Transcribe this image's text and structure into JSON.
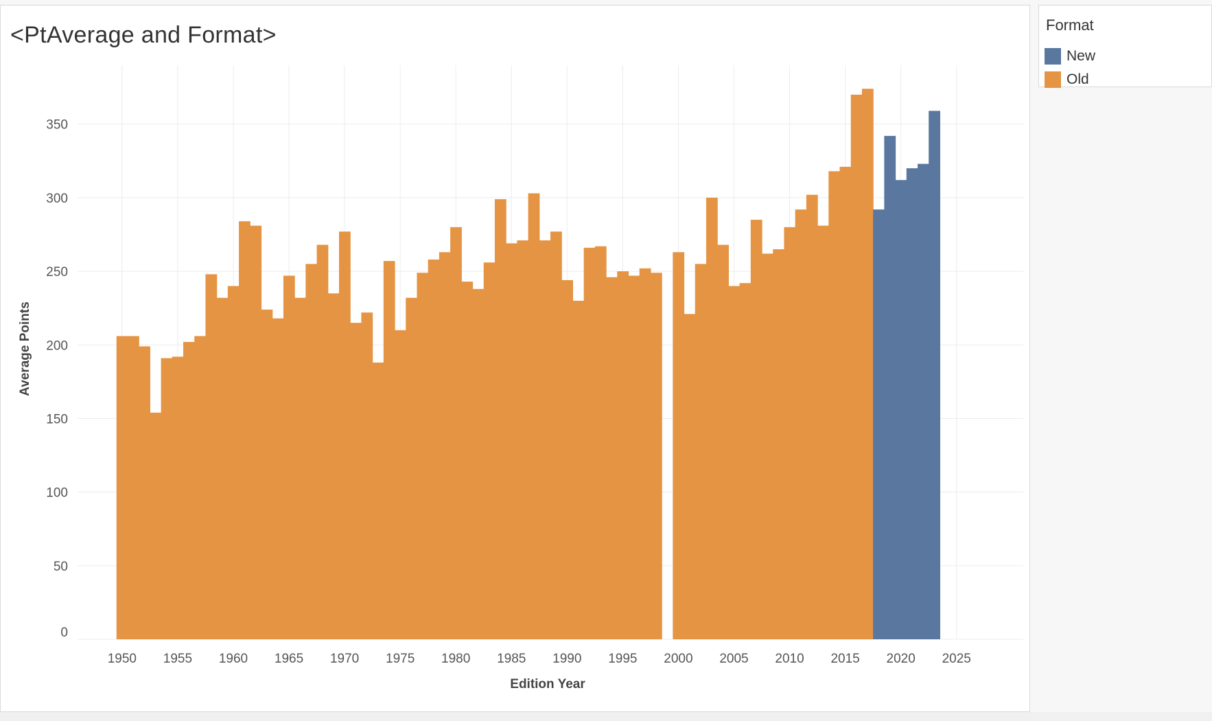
{
  "chart_data": {
    "type": "bar",
    "title": "<PtAverage and Format>",
    "xlabel": "Edition Year",
    "ylabel": "Average Points",
    "xlim": [
      1946,
      2031
    ],
    "ylim": [
      0,
      390
    ],
    "x_ticks": [
      1950,
      1955,
      1960,
      1965,
      1970,
      1975,
      1980,
      1985,
      1990,
      1995,
      2000,
      2005,
      2010,
      2015,
      2020,
      2025
    ],
    "y_ticks": [
      0,
      50,
      100,
      150,
      200,
      250,
      300,
      350
    ],
    "grid": true,
    "legend": {
      "title": "Format",
      "position": "right",
      "items": [
        {
          "name": "New",
          "color": "#59779f"
        },
        {
          "name": "Old",
          "color": "#e49443"
        }
      ]
    },
    "series": [
      {
        "name": "Old",
        "color": "#e49443",
        "x": [
          1950,
          1951,
          1952,
          1953,
          1954,
          1955,
          1956,
          1957,
          1958,
          1959,
          1960,
          1961,
          1962,
          1963,
          1964,
          1965,
          1966,
          1967,
          1968,
          1969,
          1970,
          1971,
          1972,
          1973,
          1974,
          1975,
          1976,
          1977,
          1978,
          1979,
          1980,
          1981,
          1982,
          1983,
          1984,
          1985,
          1986,
          1987,
          1988,
          1989,
          1990,
          1991,
          1992,
          1993,
          1994,
          1995,
          1996,
          1997,
          1998,
          1999,
          2000,
          2001,
          2002,
          2003,
          2004,
          2005,
          2006,
          2007,
          2008,
          2009,
          2010,
          2011,
          2012,
          2013,
          2014,
          2015,
          2016,
          2017
        ],
        "values": [
          206,
          206,
          199,
          154,
          191,
          192,
          202,
          206,
          248,
          232,
          240,
          284,
          281,
          224,
          218,
          247,
          232,
          255,
          268,
          235,
          277,
          215,
          222,
          188,
          257,
          210,
          232,
          249,
          258,
          263,
          280,
          243,
          238,
          256,
          299,
          269,
          271,
          303,
          271,
          277,
          244,
          230,
          266,
          267,
          246,
          250,
          247,
          252,
          249,
          0,
          263,
          221,
          255,
          300,
          268,
          240,
          242,
          285,
          262,
          265,
          280,
          292,
          302,
          281,
          318,
          321,
          370,
          374
        ]
      },
      {
        "name": "New",
        "color": "#59779f",
        "x": [
          2018,
          2019,
          2020,
          2021,
          2022,
          2023
        ],
        "values": [
          292,
          342,
          312,
          320,
          323,
          359
        ]
      }
    ]
  }
}
